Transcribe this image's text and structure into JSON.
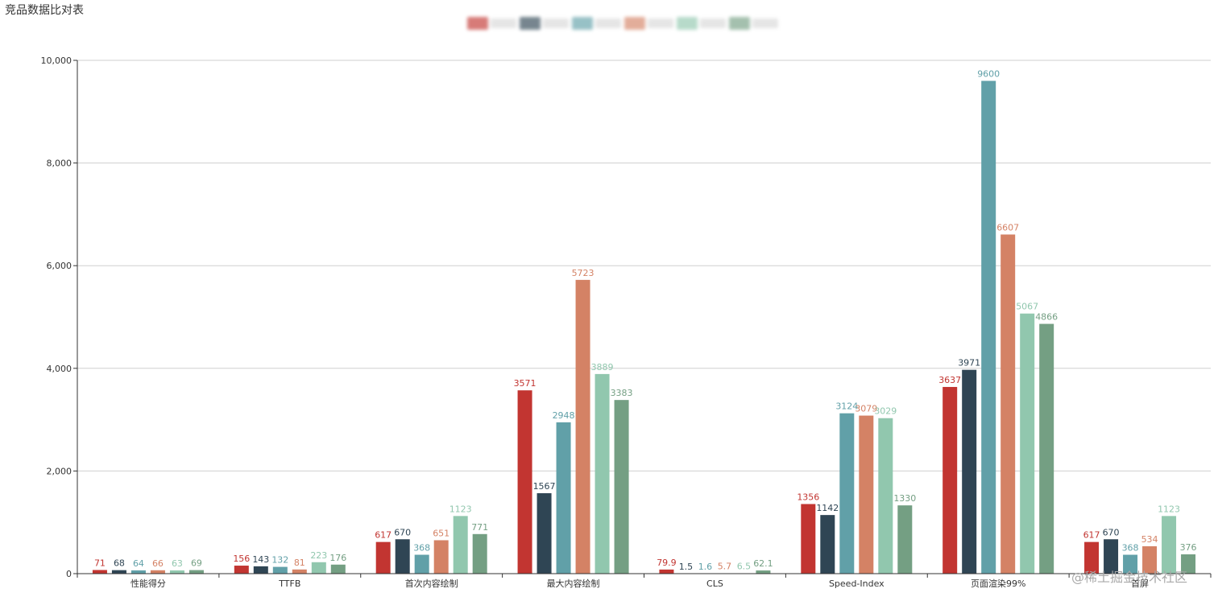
{
  "chart_data": {
    "type": "bar",
    "title": "竞品数据比对表",
    "categories": [
      "性能得分",
      "TTFB",
      "首次内容绘制",
      "最大内容绘制",
      "CLS",
      "Speed-Index",
      "页面渲染99%",
      "首屏"
    ],
    "ylim": [
      0,
      10000
    ],
    "yticks": [
      0,
      2000,
      4000,
      6000,
      8000,
      10000
    ],
    "ytick_labels": [
      "0",
      "2,000",
      "4,000",
      "6,000",
      "8,000",
      "10,000"
    ],
    "grid": true,
    "legend_placement": "top-center (obscured)",
    "colors": [
      "#c23531",
      "#2f4554",
      "#61a0a8",
      "#d48265",
      "#91c7ae",
      "#749f83"
    ],
    "series": [
      {
        "values": [
          71,
          156,
          617,
          3571,
          79.9,
          1356,
          3637,
          617
        ],
        "labels": [
          "71",
          "156",
          "617",
          "3571",
          "79.9",
          "1356",
          "3637",
          "617"
        ]
      },
      {
        "values": [
          68,
          143,
          670,
          1567,
          1.5,
          1142,
          3971,
          670
        ],
        "labels": [
          "68",
          "143",
          "670",
          "1567",
          "1.5",
          "1142",
          "3971",
          "670"
        ]
      },
      {
        "values": [
          64,
          132,
          368,
          2948,
          1.6,
          3124,
          9600,
          368
        ],
        "labels": [
          "64",
          "132",
          "368",
          "2948",
          "1.6",
          "3124",
          "9600",
          "368"
        ]
      },
      {
        "values": [
          66,
          81,
          651,
          5723,
          5.7,
          3079,
          6607,
          534
        ],
        "labels": [
          "66",
          "81",
          "651",
          "5723",
          "5.7",
          "3079",
          "6607",
          "534"
        ]
      },
      {
        "values": [
          63,
          223,
          1123,
          3889,
          6.5,
          3029,
          5067,
          1123
        ],
        "labels": [
          "63",
          "223",
          "1123",
          "3889",
          "6.5",
          "3029",
          "5067",
          "1123"
        ]
      },
      {
        "values": [
          69,
          176,
          771,
          3383,
          62.1,
          1330,
          4866,
          376
        ],
        "labels": [
          "69",
          "176",
          "771",
          "3383",
          "62.1",
          "1330",
          "4866",
          "376"
        ]
      }
    ]
  },
  "watermark": "@稀土掘金技术社区"
}
